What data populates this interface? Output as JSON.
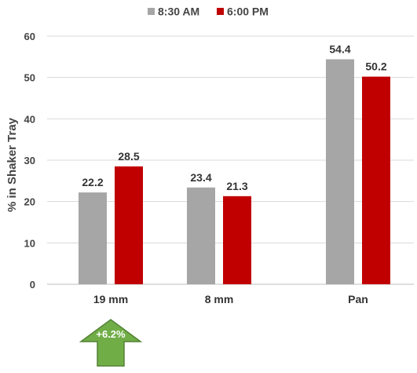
{
  "chart_data": {
    "type": "bar",
    "categories": [
      "19 mm",
      "8 mm",
      "Pan"
    ],
    "series": [
      {
        "name": "8:30 AM",
        "values": [
          22.2,
          23.4,
          54.4
        ],
        "color": "#a6a6a6"
      },
      {
        "name": "6:00 PM",
        "values": [
          28.5,
          21.3,
          50.2
        ],
        "color": "#c00000"
      }
    ],
    "data_labels": [
      [
        "22.2",
        "23.4",
        "54.4"
      ],
      [
        "28.5",
        "21.3",
        "50.2"
      ]
    ],
    "ylabel": "% in Shaker Tray",
    "xlabel": "",
    "ylim": [
      0,
      60
    ],
    "yticks": [
      0,
      10,
      20,
      30,
      40,
      50,
      60
    ],
    "grid": true,
    "legend": "top-center",
    "annotation": {
      "text": "+6.2%",
      "category": "19 mm",
      "color": "#70ad47",
      "border_color": "#548235",
      "shape": "up-arrow"
    }
  }
}
